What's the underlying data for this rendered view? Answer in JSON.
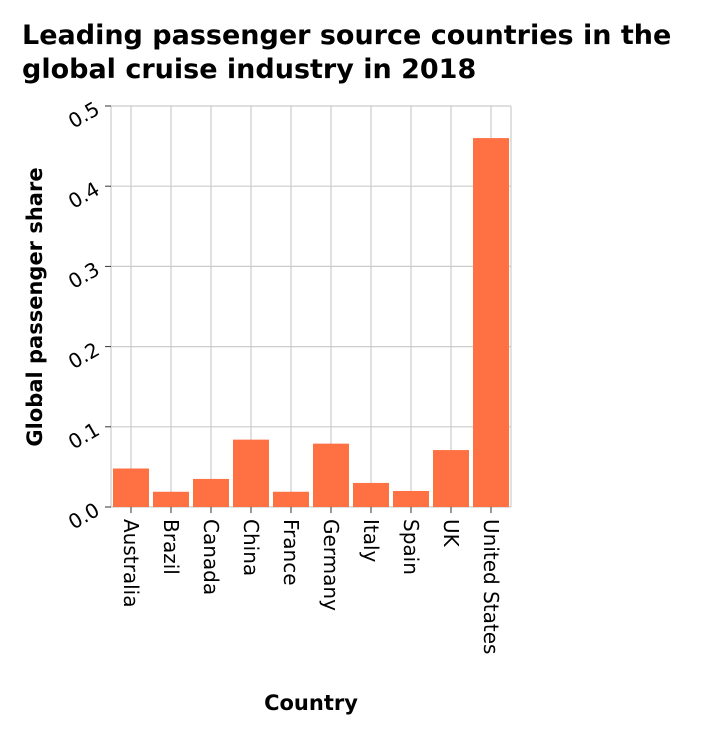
{
  "chart_data": {
    "type": "bar",
    "title_lines": [
      "Leading passenger source countries in the",
      "global cruise industry in 2018"
    ],
    "xlabel": "Country",
    "ylabel": "Global passenger share",
    "categories": [
      "Australia",
      "Brazil",
      "Canada",
      "China",
      "France",
      "Germany",
      "Italy",
      "Spain",
      "UK",
      "United States"
    ],
    "values": [
      0.048,
      0.019,
      0.035,
      0.084,
      0.019,
      0.079,
      0.03,
      0.02,
      0.071,
      0.46
    ],
    "ylim": [
      0,
      0.5
    ],
    "yticks": [
      "0.0",
      "0.1",
      "0.2",
      "0.3",
      "0.4",
      "0.5"
    ],
    "grid": true,
    "bar_color": "#ff7043",
    "grid_color": "#cccccc"
  }
}
